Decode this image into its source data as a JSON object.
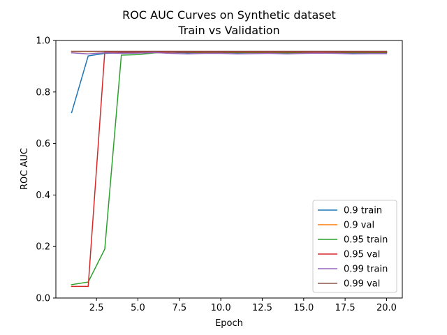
{
  "chart_data": {
    "type": "line",
    "title": "ROC AUC Curves on Synthetic dataset",
    "subtitle": "Train vs Validation",
    "xlabel": "Epoch",
    "ylabel": "ROC AUC",
    "xlim": [
      0.05,
      20.95
    ],
    "ylim": [
      0.0,
      1.0
    ],
    "xticks": [
      "2.5",
      "5.0",
      "7.5",
      "10.0",
      "12.5",
      "15.0",
      "17.5",
      "20.0"
    ],
    "xtick_values": [
      2.5,
      5.0,
      7.5,
      10.0,
      12.5,
      15.0,
      17.5,
      20.0
    ],
    "yticks": [
      "0.0",
      "0.2",
      "0.4",
      "0.6",
      "0.8",
      "1.0"
    ],
    "ytick_values": [
      0.0,
      0.2,
      0.4,
      0.6,
      0.8,
      1.0
    ],
    "grid": false,
    "legend_position": "lower-right",
    "x": [
      1,
      2,
      3,
      4,
      5,
      6,
      7,
      8,
      9,
      10,
      11,
      12,
      13,
      14,
      15,
      16,
      17,
      18,
      19,
      20
    ],
    "series": [
      {
        "name": "0.9 train",
        "color": "#1f77b4",
        "values": [
          0.72,
          0.94,
          0.95,
          0.952,
          0.953,
          0.955,
          0.954,
          0.952,
          0.953,
          0.953,
          0.952,
          0.953,
          0.952,
          0.952,
          0.953,
          0.953,
          0.953,
          0.951,
          0.952,
          0.952
        ]
      },
      {
        "name": "0.9 val",
        "color": "#ff7f0e",
        "values": [
          0.957,
          0.957,
          0.957,
          0.957,
          0.957,
          0.957,
          0.957,
          0.957,
          0.957,
          0.957,
          0.957,
          0.957,
          0.957,
          0.957,
          0.957,
          0.957,
          0.957,
          0.957,
          0.957,
          0.957
        ]
      },
      {
        "name": "0.95 train",
        "color": "#2ca02c",
        "values": [
          0.052,
          0.062,
          0.19,
          0.943,
          0.945,
          0.952,
          0.955,
          0.954,
          0.953,
          0.954,
          0.953,
          0.953,
          0.953,
          0.952,
          0.953,
          0.953,
          0.954,
          0.953,
          0.953,
          0.953
        ]
      },
      {
        "name": "0.95 val",
        "color": "#d62728",
        "values": [
          0.045,
          0.045,
          0.955,
          0.955,
          0.955,
          0.955,
          0.955,
          0.955,
          0.955,
          0.955,
          0.955,
          0.955,
          0.955,
          0.955,
          0.955,
          0.955,
          0.955,
          0.955,
          0.955,
          0.955
        ]
      },
      {
        "name": "0.99 train",
        "color": "#9467bd",
        "values": [
          0.952,
          0.948,
          0.952,
          0.95,
          0.951,
          0.953,
          0.95,
          0.948,
          0.95,
          0.95,
          0.948,
          0.949,
          0.95,
          0.948,
          0.95,
          0.951,
          0.95,
          0.948,
          0.949,
          0.949
        ]
      },
      {
        "name": "0.99 val",
        "color": "#8c564b",
        "values": [
          0.958,
          0.958,
          0.958,
          0.958,
          0.958,
          0.958,
          0.958,
          0.958,
          0.958,
          0.958,
          0.958,
          0.958,
          0.958,
          0.958,
          0.958,
          0.958,
          0.958,
          0.958,
          0.958,
          0.958
        ]
      }
    ]
  }
}
